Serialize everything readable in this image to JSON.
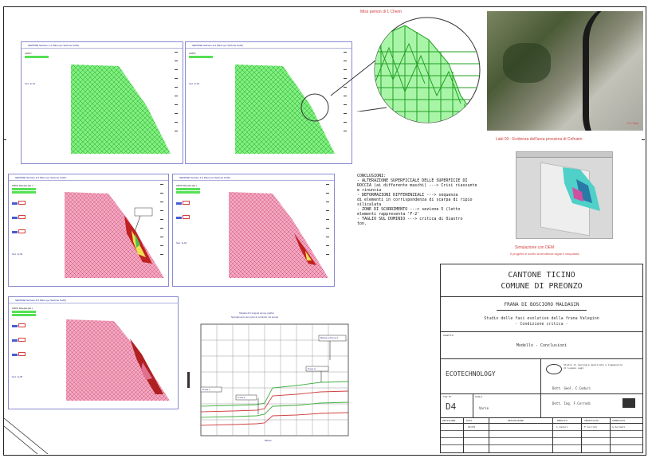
{
  "zoom_caption": "Miss peinon di 1 Chiem",
  "photo_caption": "Labi 03 - Evidenza dell'area prossima di Cofnaim",
  "model_caption_1": "Simulazione con DEM",
  "model_caption_2": "Il progetto è scelto la tendenza sigue il cinquanta",
  "photo_scale_label": "0.1 Doc",
  "panels": [
    {
      "title": "SEZIONE Sezione 1-1 Piano (ex Sezione 0+00)",
      "legend_title": "LIMITI",
      "sub": "Sez. E-01"
    },
    {
      "title": "SEZIONE Sezione 2-2 Piano (ex Sezione 0+00)",
      "legend_title": "LIMITI",
      "sub": "Sez. E-02"
    },
    {
      "title": "SEZIONE Sezione 3-3 Piano (ex Sezione 0+00)",
      "legend_title": "CRISI Rivesta (ab.)",
      "sub": "Sez. E-03"
    },
    {
      "title": "SEZIONE Sezione 4-4 Piano (ex Sezione 0+00)",
      "legend_title": "CRISI Rivesta (ab.)",
      "sub": "Sez. E-04"
    },
    {
      "title": "SEZIONE Sezione 5-5 Piano (ex Sezione 0+00)",
      "legend_title": "CRISI Rivesta (ab.)",
      "sub": "Sez. E-05"
    }
  ],
  "notes": [
    "CONCLUSIONI:",
    "- ALTERAZIONE SUPERFICIALE DELLE SUPERFICIE DI",
    "  ROCCIA (ai differente maschi) ---> Crisi riassunte",
    "  e rinuncia",
    "- DEFORMAZIONI DIFFERENZIALI ---> sequenza",
    "  di elementi in corrispondenza di scarpa di ripio",
    "  silicalata",
    "- ZONE DI SCORRIMENTO ---> sezione 5 (letto",
    "  elementi rappresenta 'F-2'",
    "- TAGLIO SUL DOMINIO ---> critica di Oiastro",
    "  ton."
  ],
  "graph": {
    "title": "Tabella di il singola tempo grafico",
    "subtitle": "Spostamento dei punti di controllo nel tempo",
    "labels": [
      "P.ssa 1",
      "P.ssa 2",
      "P.ssa 3",
      "Bassa a Prova 4"
    ],
    "axis_side": "Ellisse"
  },
  "title_block": {
    "line1": "CANTONE TICINO",
    "line2": "COMUNE DI PREONZO",
    "project": "FRANA DI BOSCIORO MALDAGIN",
    "study_1": "Studio delle fasi evolutive della frana Valeginn",
    "study_2": "- Condizione critica -",
    "oggetto_label": "OGGETTO",
    "oggetto_value": "Modello - Conclusioni",
    "company": "ECOTECHNOLOGY",
    "office": "Studio di Geologia Applicata e Ingegneria",
    "office_sub": "di Lugano sagl",
    "person1": "Dott. Geol. C.Ceduri",
    "person2": "Dott. Ing. F.Corrodi",
    "tav_label": "TAV N°",
    "tav_value": "D4",
    "scala_label": "SCALA",
    "scala_value": "Varie",
    "rev_headers": [
      "REVISIONE",
      "DATA",
      "DESCRIZIONE",
      "REDATTO",
      "VERIFICATO",
      "APPROVATO"
    ],
    "rev_row": [
      "",
      "04/09",
      "",
      "C.Ceduri",
      "F.Corrodi",
      "G.Soldati"
    ]
  }
}
